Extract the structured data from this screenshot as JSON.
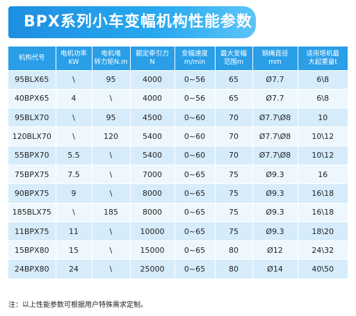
{
  "title": "BPX系列小车变幅机构性能参数",
  "table": {
    "headers": [
      [
        "机构代号"
      ],
      [
        "电机功率",
        "KW"
      ],
      [
        "电机堵",
        "转力矩N.m"
      ],
      [
        "额定牵引力",
        "N"
      ],
      [
        "变幅速度",
        "m/min"
      ],
      [
        "最大变幅",
        "范围m"
      ],
      [
        "钢绳直径",
        "mm"
      ],
      [
        "适用塔机最",
        "大起重量t"
      ]
    ],
    "rows": [
      [
        "95BLX65",
        "\\",
        "95",
        "4000",
        "0~56",
        "65",
        "Ø7.7",
        "6\\8"
      ],
      [
        "40BPX65",
        "4",
        "\\",
        "4000",
        "0~56",
        "65",
        "Ø7.7",
        "6\\8"
      ],
      [
        "95BLX70",
        "\\",
        "95",
        "4500",
        "0~60",
        "70",
        "Ø7.7\\Ø8",
        "10"
      ],
      [
        "120BLX70",
        "\\",
        "120",
        "5400",
        "0~60",
        "70",
        "Ø7.7\\Ø8",
        "10\\12"
      ],
      [
        "55BPX70",
        "5.5",
        "\\",
        "5400",
        "0~60",
        "70",
        "Ø7.7\\Ø8",
        "10\\12"
      ],
      [
        "75BPX75",
        "7.5",
        "\\",
        "7000",
        "0~65",
        "75",
        "Ø9.3",
        "16"
      ],
      [
        "90BPX75",
        "9",
        "\\",
        "8000",
        "0~65",
        "75",
        "Ø9.3",
        "16\\18"
      ],
      [
        "185BLX75",
        "\\",
        "185",
        "8000",
        "0~65",
        "75",
        "Ø9.3",
        "16\\18"
      ],
      [
        "11BPX75",
        "11",
        "\\",
        "10000",
        "0~65",
        "75",
        "Ø9.3",
        "18\\20"
      ],
      [
        "15BPX80",
        "15",
        "\\",
        "15000",
        "0~65",
        "80",
        "Ø12",
        "24\\32"
      ],
      [
        "24BPX80",
        "24",
        "\\",
        "25000",
        "0~65",
        "80",
        "Ø14",
        "40\\50"
      ]
    ]
  },
  "note": "注：以上性能参数可根据用户特殊需求定制。",
  "colors": {
    "header_bg": "#2a9fe8",
    "row_odd": "#d6ecfb",
    "row_even": "#eef7fe",
    "banner": "#1e8fe0"
  }
}
